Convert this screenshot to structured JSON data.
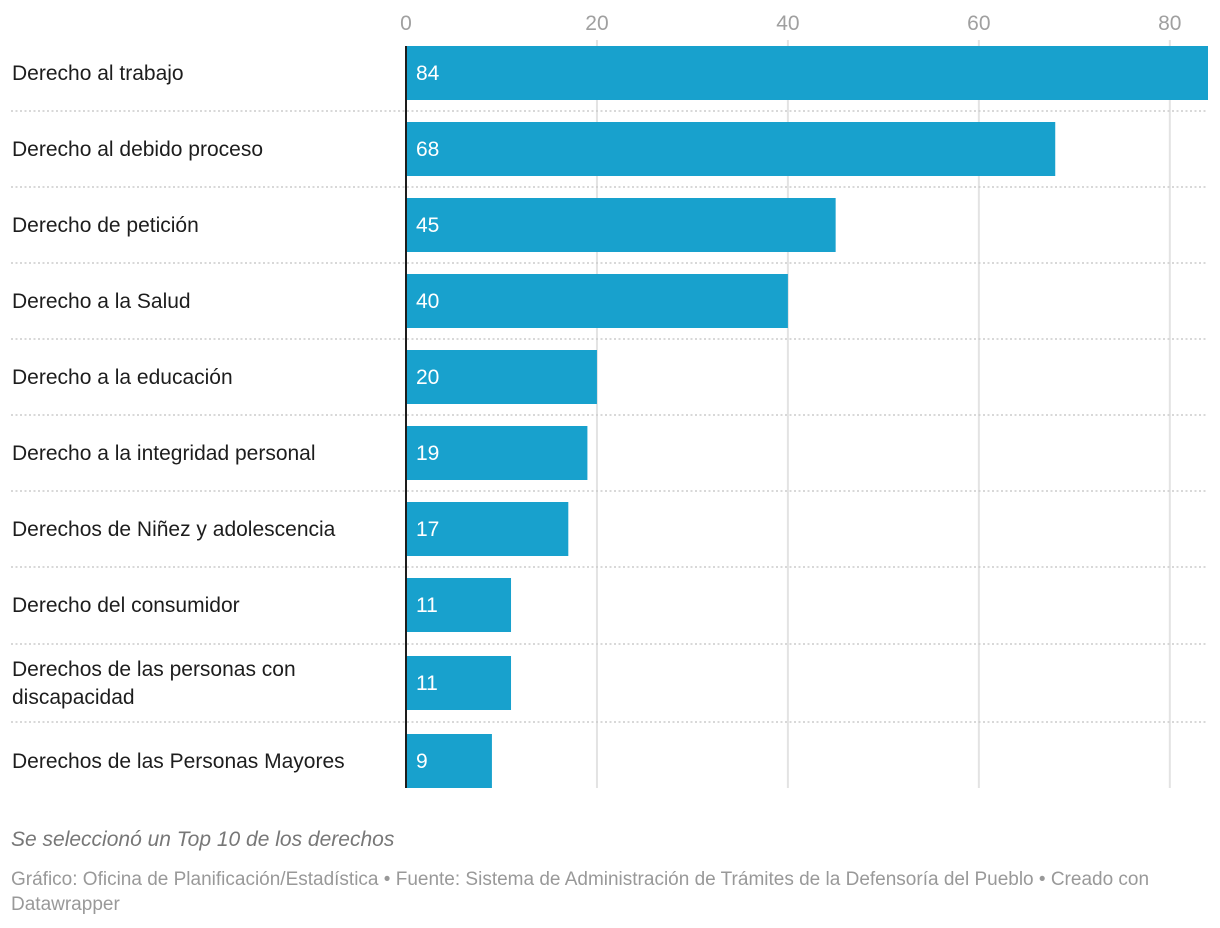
{
  "chart_data": {
    "type": "bar",
    "orientation": "horizontal",
    "categories": [
      "Derecho al trabajo",
      "Derecho al debido proceso",
      "Derecho de petición",
      "Derecho a la Salud",
      "Derecho a la educación",
      "Derecho a la integridad personal",
      "Derechos de Niñez y adolescencia",
      "Derecho del consumidor",
      "Derechos de las personas con discapacidad",
      "Derechos de las Personas Mayores"
    ],
    "values": [
      84,
      68,
      45,
      40,
      20,
      19,
      17,
      11,
      11,
      9
    ],
    "xticks": [
      0,
      20,
      40,
      60,
      80
    ],
    "xlim": [
      0,
      84
    ],
    "grid": true,
    "bar_color": "#18a1cd",
    "title": "",
    "xlabel": "",
    "ylabel": ""
  },
  "notes": "Se seleccionó un Top 10 de los derechos",
  "footer": "Gráfico: Oficina de Planificación/Estadística • Fuente: Sistema de Administración de Trámites de la Defensoría del Pueblo • Creado con Datawrapper"
}
